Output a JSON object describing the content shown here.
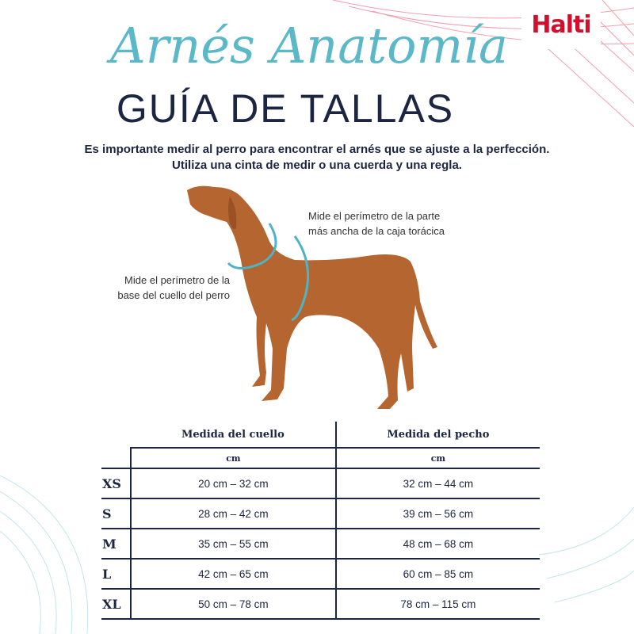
{
  "brand": {
    "logo": "Halti",
    "accent": "#d0102d"
  },
  "header": {
    "script_title": "Arnés Anatomía",
    "title": "GUÍA DE TALLAS",
    "script_color": "#5ab8c8",
    "title_color": "#1c2541"
  },
  "intro": [
    "Es importante medir al perro para encontrar el arnés que se ajuste a la perfección.",
    "Utiliza una cinta de medir o una cuerda y una regla."
  ],
  "labels": {
    "chest": [
      "Mide el perímetro de la parte",
      "más ancha de la caja torácica"
    ],
    "neck": [
      "Mide el perímetro de la",
      "base del cuello del perro"
    ]
  },
  "table": {
    "headers": [
      "Medida del cuello",
      "Medida del pecho"
    ],
    "units": [
      "cm",
      "cm"
    ],
    "rows": [
      {
        "size": "XS",
        "neck": "20 cm – 32 cm",
        "chest": "32 cm – 44 cm"
      },
      {
        "size": "S",
        "neck": "28 cm – 42 cm",
        "chest": "39 cm – 56 cm"
      },
      {
        "size": "M",
        "neck": "35 cm – 55 cm",
        "chest": "48 cm – 68 cm"
      },
      {
        "size": "L",
        "neck": "42 cm – 65 cm",
        "chest": "60 cm – 85 cm"
      },
      {
        "size": "XL",
        "neck": "50 cm – 78 cm",
        "chest": "78 cm – 115 cm"
      }
    ]
  }
}
